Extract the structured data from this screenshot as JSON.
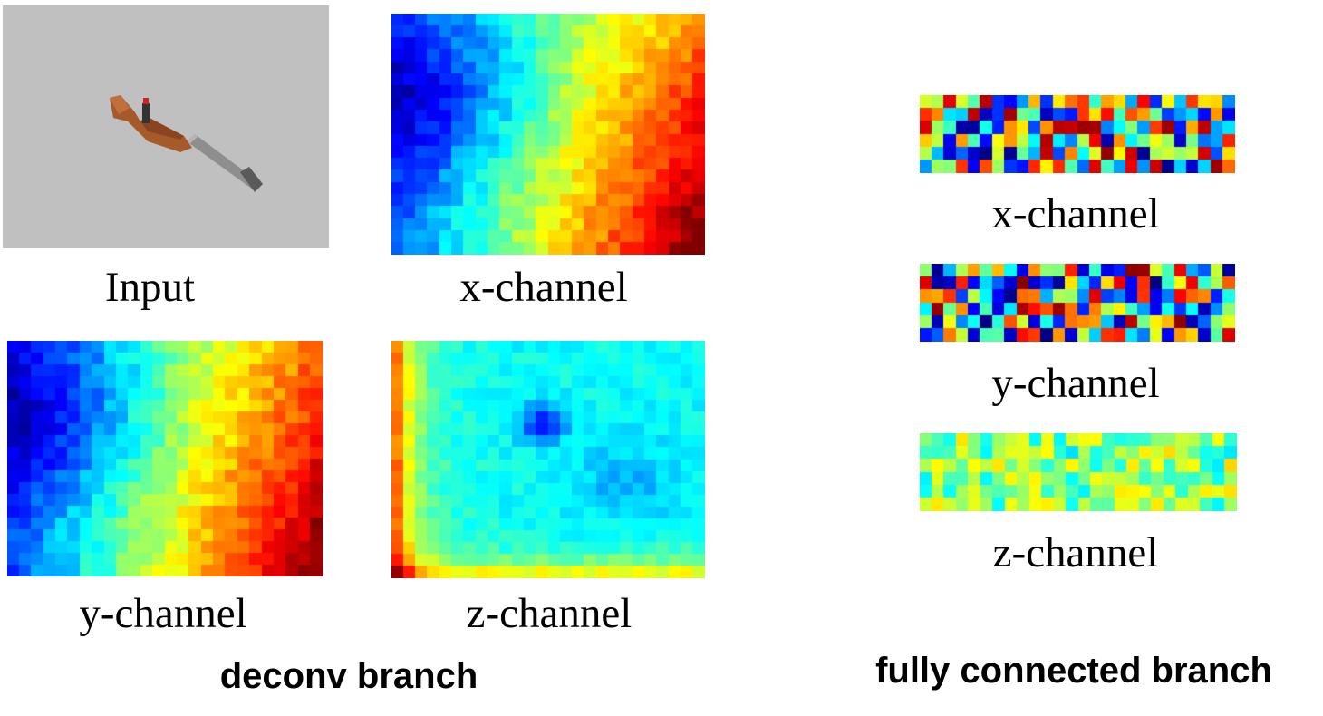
{
  "deconv_branch": {
    "title": "deconv branch",
    "input_label": "Input",
    "x_label": "x-channel",
    "y_label": "y-channel",
    "z_label": "z-channel"
  },
  "fc_branch": {
    "title": "fully connected branch",
    "x_label": "x-channel",
    "y_label": "y-channel",
    "z_label": "z-channel"
  },
  "colors": {
    "input_background": "#c0c0c0",
    "rifle_stock": "#a0522d",
    "rifle_barrel": "#8c8c8c",
    "colormap": "jet"
  },
  "icons": {
    "input_object": "rifle-icon"
  }
}
